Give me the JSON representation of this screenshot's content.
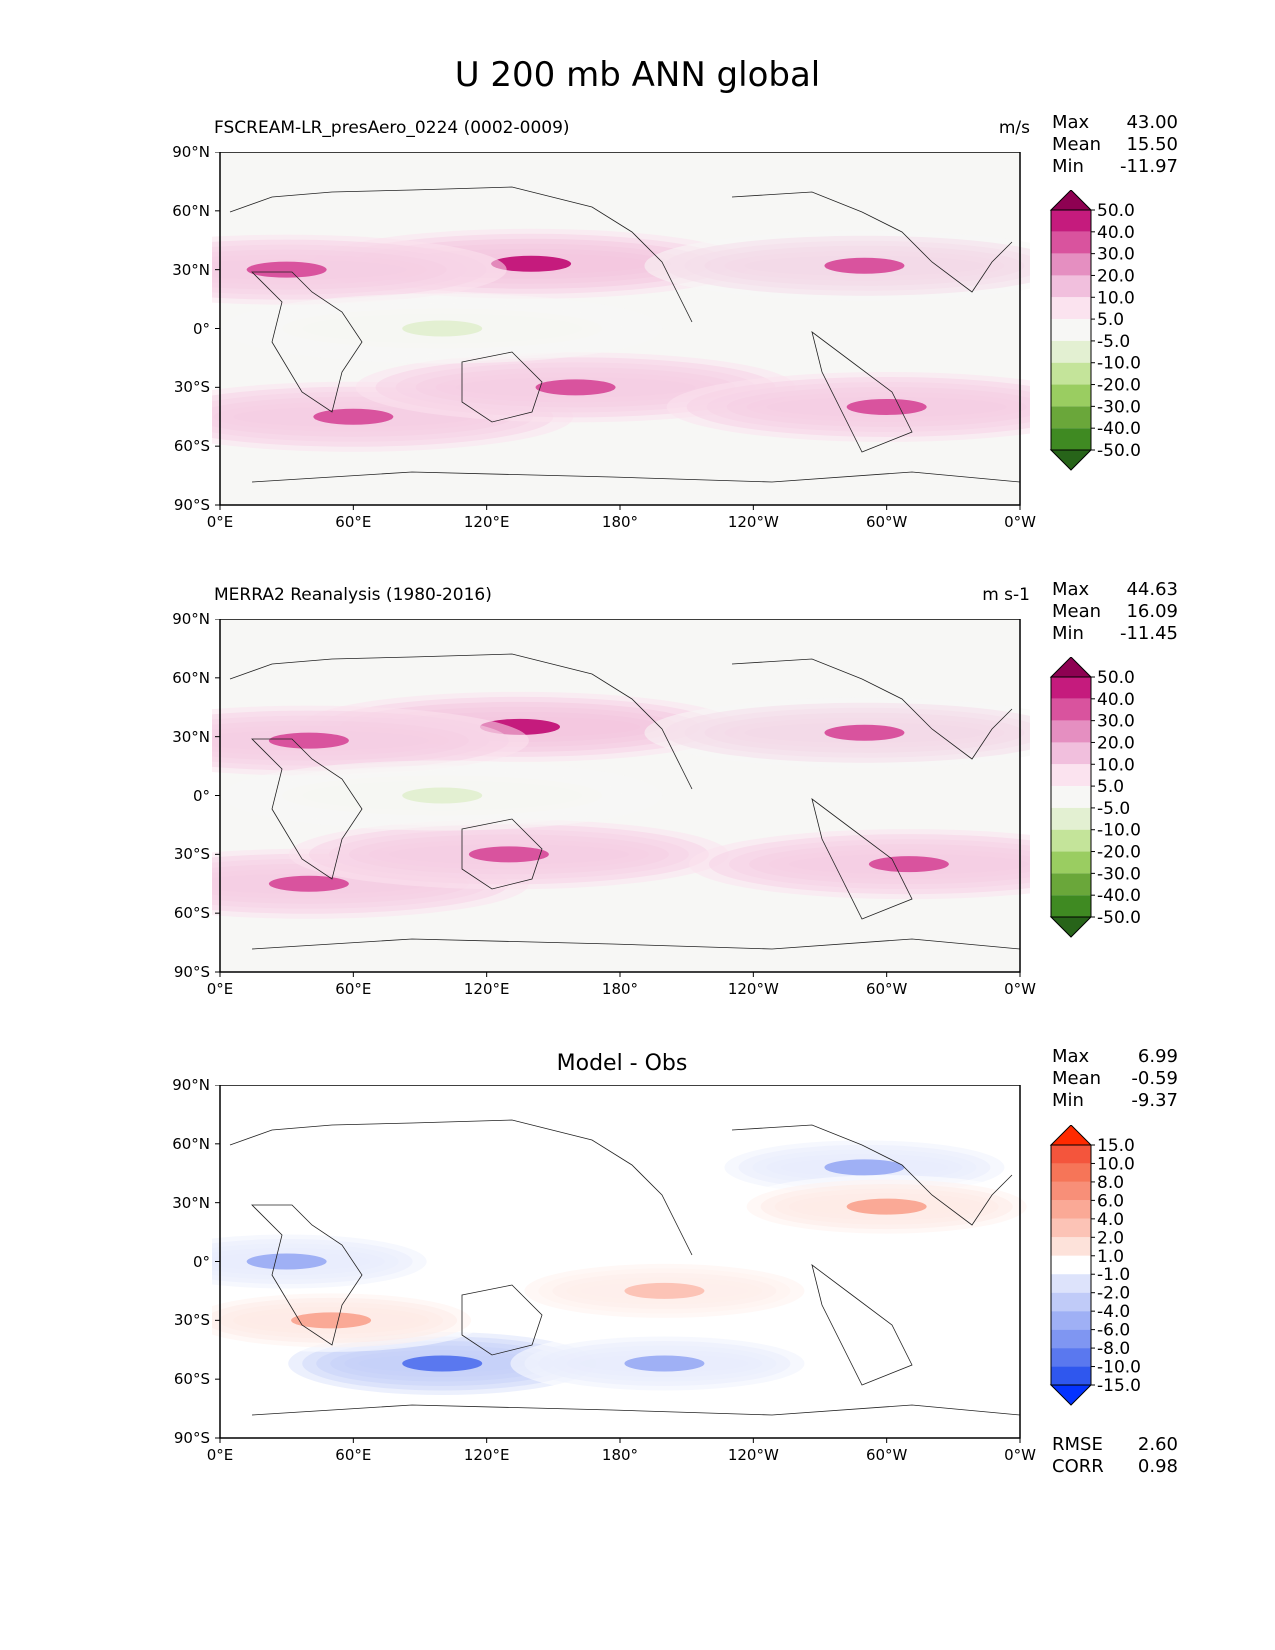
{
  "figure_title": "U 200 mb ANN global",
  "axis_ticks": {
    "lat": [
      "90°N",
      "60°N",
      "30°N",
      "0°",
      "30°S",
      "60°S",
      "90°S"
    ],
    "lon": [
      "0°E",
      "60°E",
      "120°E",
      "180°",
      "120°W",
      "60°W",
      "0°W"
    ]
  },
  "panels": [
    {
      "title_left": "FSCREAM-LR_presAero_0224 (0002-0009)",
      "title_right": "m/s",
      "title_center": "",
      "stats": [
        {
          "label": "Max",
          "value": "43.00"
        },
        {
          "label": "Mean",
          "value": "15.50"
        },
        {
          "label": "Min",
          "value": "-11.97"
        }
      ],
      "colorbar": {
        "labels": [
          "50.0",
          "40.0",
          "30.0",
          "20.0",
          "10.0",
          "5.0",
          "-5.0",
          "-10.0",
          "-20.0",
          "-30.0",
          "-40.0",
          "-50.0"
        ],
        "colors": [
          "#8e0152",
          "#c51b7d",
          "#d9539e",
          "#e58fc1",
          "#f1bfdd",
          "#fbe3ef",
          "#f7f7f5",
          "#e3f0d2",
          "#c4e49a",
          "#9acd61",
          "#6aa73a",
          "#3f8a22",
          "#276419"
        ]
      }
    },
    {
      "title_left": "MERRA2 Reanalysis (1980-2016)",
      "title_right": "m s-1",
      "title_center": "",
      "stats": [
        {
          "label": "Max",
          "value": "44.63"
        },
        {
          "label": "Mean",
          "value": "16.09"
        },
        {
          "label": "Min",
          "value": "-11.45"
        }
      ],
      "colorbar": {
        "labels": [
          "50.0",
          "40.0",
          "30.0",
          "20.0",
          "10.0",
          "5.0",
          "-5.0",
          "-10.0",
          "-20.0",
          "-30.0",
          "-40.0",
          "-50.0"
        ],
        "colors": [
          "#8e0152",
          "#c51b7d",
          "#d9539e",
          "#e58fc1",
          "#f1bfdd",
          "#fbe3ef",
          "#f7f7f5",
          "#e3f0d2",
          "#c4e49a",
          "#9acd61",
          "#6aa73a",
          "#3f8a22",
          "#276419"
        ]
      }
    },
    {
      "title_left": "",
      "title_right": "",
      "title_center": "Model - Obs",
      "stats": [
        {
          "label": "Max",
          "value": "6.99"
        },
        {
          "label": "Mean",
          "value": "-0.59"
        },
        {
          "label": "Min",
          "value": "-9.37"
        }
      ],
      "metrics": [
        {
          "label": "RMSE",
          "value": "2.60"
        },
        {
          "label": "CORR",
          "value": "0.98"
        }
      ],
      "colorbar": {
        "labels": [
          "15.0",
          "10.0",
          "8.0",
          "6.0",
          "4.0",
          "2.0",
          "1.0",
          "-1.0",
          "-2.0",
          "-4.0",
          "-6.0",
          "-8.0",
          "-10.0",
          "-15.0"
        ],
        "colors": [
          "#ff2a00",
          "#f4553c",
          "#f67558",
          "#f88f78",
          "#faa996",
          "#fcc3b6",
          "#fde2da",
          "#ffffff",
          "#dde3fb",
          "#c0cbf8",
          "#9fb0f5",
          "#7f96f2",
          "#5a78ef",
          "#2f57ee",
          "#0433ff"
        ]
      }
    }
  ],
  "chart_data": [
    {
      "type": "heatmap",
      "title": "FSCREAM-LR_presAero_0224 (0002-0009)",
      "units": "m/s",
      "xlabel": "",
      "ylabel": "",
      "x_ticks": [
        "0°E",
        "60°E",
        "120°E",
        "180°",
        "120°W",
        "60°W",
        "0°W"
      ],
      "y_ticks": [
        "90°N",
        "60°N",
        "30°N",
        "0°",
        "30°S",
        "60°S",
        "90°S"
      ],
      "xlim": [
        0,
        360
      ],
      "ylim": [
        -90,
        90
      ],
      "levels": [
        -50,
        -40,
        -30,
        -20,
        -10,
        -5,
        5,
        10,
        20,
        30,
        40,
        50
      ],
      "max": 43.0,
      "mean": 15.5,
      "min": -11.97,
      "jets": [
        {
          "lon": 140,
          "lat": 33,
          "value": 43
        },
        {
          "lon": 30,
          "lat": 30,
          "value": 32
        },
        {
          "lon": 290,
          "lat": 32,
          "value": 30
        },
        {
          "lon": 60,
          "lat": -45,
          "value": 32
        },
        {
          "lon": 160,
          "lat": -30,
          "value": 35
        },
        {
          "lon": 300,
          "lat": -40,
          "value": 32
        },
        {
          "lon": 100,
          "lat": 0,
          "value": -10
        }
      ]
    },
    {
      "type": "heatmap",
      "title": "MERRA2 Reanalysis (1980-2016)",
      "units": "m s-1",
      "xlabel": "",
      "ylabel": "",
      "x_ticks": [
        "0°E",
        "60°E",
        "120°E",
        "180°",
        "120°W",
        "60°W",
        "0°W"
      ],
      "y_ticks": [
        "90°N",
        "60°N",
        "30°N",
        "0°",
        "30°S",
        "60°S",
        "90°S"
      ],
      "xlim": [
        0,
        360
      ],
      "ylim": [
        -90,
        90
      ],
      "levels": [
        -50,
        -40,
        -30,
        -20,
        -10,
        -5,
        5,
        10,
        20,
        30,
        40,
        50
      ],
      "max": 44.63,
      "mean": 16.09,
      "min": -11.45,
      "jets": [
        {
          "lon": 135,
          "lat": 35,
          "value": 44
        },
        {
          "lon": 40,
          "lat": 28,
          "value": 32
        },
        {
          "lon": 290,
          "lat": 32,
          "value": 30
        },
        {
          "lon": 40,
          "lat": -45,
          "value": 32
        },
        {
          "lon": 130,
          "lat": -30,
          "value": 32
        },
        {
          "lon": 310,
          "lat": -35,
          "value": 32
        },
        {
          "lon": 100,
          "lat": 0,
          "value": -10
        }
      ]
    },
    {
      "type": "heatmap",
      "title": "Model - Obs",
      "units": "",
      "xlabel": "",
      "ylabel": "",
      "x_ticks": [
        "0°E",
        "60°E",
        "120°E",
        "180°",
        "120°W",
        "60°W",
        "0°W"
      ],
      "y_ticks": [
        "90°N",
        "60°N",
        "30°N",
        "0°",
        "30°S",
        "60°S",
        "90°S"
      ],
      "xlim": [
        0,
        360
      ],
      "ylim": [
        -90,
        90
      ],
      "levels": [
        -15,
        -10,
        -8,
        -6,
        -4,
        -2,
        -1,
        1,
        2,
        4,
        6,
        8,
        10,
        15
      ],
      "max": 6.99,
      "mean": -0.59,
      "min": -9.37,
      "rmse": 2.6,
      "corr": 0.98,
      "anomalies": [
        {
          "lon": 100,
          "lat": -52,
          "value": -9
        },
        {
          "lon": 200,
          "lat": -52,
          "value": -6
        },
        {
          "lon": 290,
          "lat": 48,
          "value": -6
        },
        {
          "lon": 50,
          "lat": -30,
          "value": 5
        },
        {
          "lon": 300,
          "lat": 28,
          "value": 4
        },
        {
          "lon": 30,
          "lat": 0,
          "value": -6
        },
        {
          "lon": 200,
          "lat": -15,
          "value": 3
        }
      ]
    }
  ]
}
